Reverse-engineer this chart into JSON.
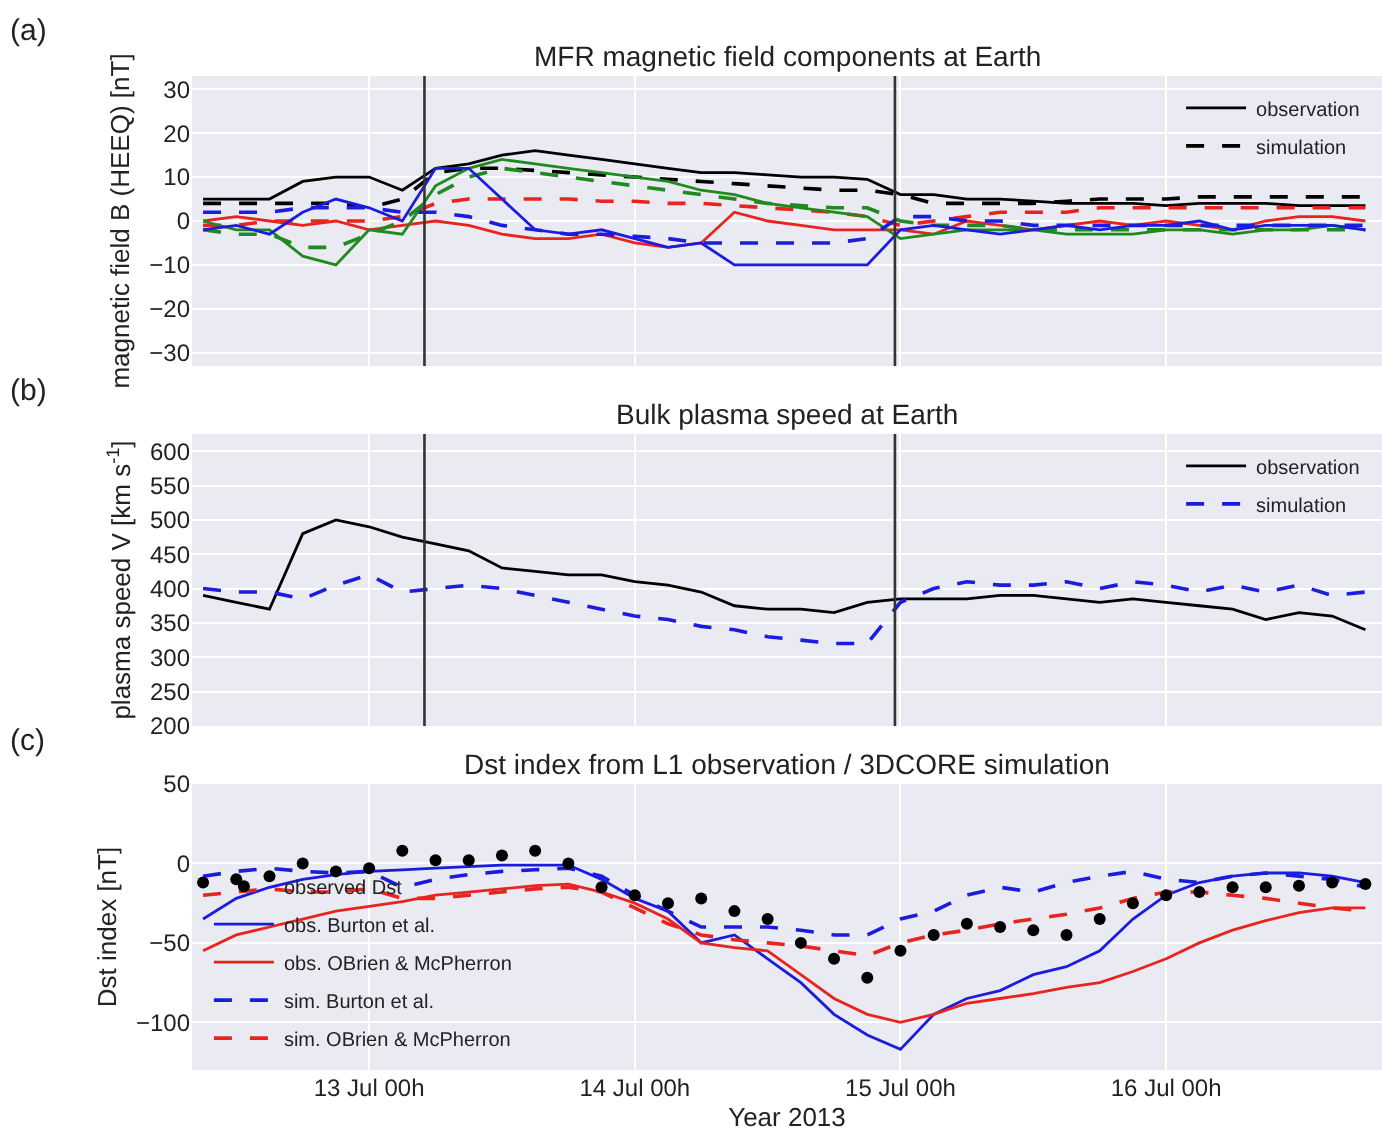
{
  "chart_data": [
    {
      "type": "line",
      "title": "MFR magnetic field components at Earth",
      "ylabel": "magnetic field B (HEEQ) [nT]",
      "annotations": [
        "(a)"
      ],
      "x": [
        "2013-07-12T09:00",
        "2013-07-12T12:00",
        "2013-07-12T15:00",
        "2013-07-12T18:00",
        "2013-07-12T21:00",
        "2013-07-13T00:00",
        "2013-07-13T03:00",
        "2013-07-13T06:00",
        "2013-07-13T09:00",
        "2013-07-13T12:00",
        "2013-07-13T15:00",
        "2013-07-13T18:00",
        "2013-07-13T21:00",
        "2013-07-14T00:00",
        "2013-07-14T03:00",
        "2013-07-14T06:00",
        "2013-07-14T09:00",
        "2013-07-14T12:00",
        "2013-07-14T15:00",
        "2013-07-14T18:00",
        "2013-07-14T21:00",
        "2013-07-15T00:00",
        "2013-07-15T03:00",
        "2013-07-15T06:00",
        "2013-07-15T09:00",
        "2013-07-15T12:00",
        "2013-07-15T15:00",
        "2013-07-15T18:00",
        "2013-07-15T21:00",
        "2013-07-16T00:00",
        "2013-07-16T03:00",
        "2013-07-16T06:00",
        "2013-07-16T09:00",
        "2013-07-16T12:00",
        "2013-07-16T15:00",
        "2013-07-16T18:00"
      ],
      "xlim": [
        "2013-07-12T08:00",
        "2013-07-16T19:30"
      ],
      "xticks": [
        {
          "value": "2013-07-13T00:00",
          "label": null
        },
        {
          "value": "2013-07-14T00:00",
          "label": null
        },
        {
          "value": "2013-07-15T00:00",
          "label": null
        },
        {
          "value": "2013-07-16T00:00",
          "label": null
        }
      ],
      "ylim": [
        -33,
        33
      ],
      "yticks": [
        {
          "value": -30,
          "label": "−30"
        },
        {
          "value": -20,
          "label": "−20"
        },
        {
          "value": -10,
          "label": "−10"
        },
        0,
        10,
        20,
        30
      ],
      "tick_labels": "y",
      "grid": true,
      "legend": "top right",
      "marker": "none",
      "ref_lines": [
        {
          "axis": "x",
          "value": "2013-07-13T05:00",
          "color": "#333333"
        },
        {
          "axis": "x",
          "value": "2013-07-14T23:30",
          "color": "#333333"
        }
      ],
      "series": [
        {
          "name": "observation",
          "color": "#000000",
          "line_style": "solid",
          "values": [
            5,
            5,
            5,
            9,
            10,
            10,
            7,
            12,
            13,
            15,
            16,
            15,
            14,
            13,
            12,
            11,
            11,
            10.5,
            10,
            10,
            9.5,
            6,
            6,
            5,
            5,
            4.5,
            4,
            4,
            4,
            3.5,
            4,
            4,
            4,
            3.5,
            3.5,
            3.5
          ]
        },
        {
          "name": "simulation",
          "color": "#000000",
          "line_style": "dashed",
          "values": [
            4,
            4,
            4,
            4,
            4,
            3,
            5,
            11,
            12,
            12,
            11.5,
            11,
            10.5,
            10,
            9.5,
            9,
            8.5,
            8,
            7.5,
            7,
            7,
            6,
            4,
            4,
            4,
            4,
            4.5,
            5,
            5,
            5,
            5.5,
            5.5,
            5.5,
            5.5,
            5.5,
            5.5
          ]
        },
        {
          "color": "#e8241f",
          "line_style": "solid",
          "values": [
            0,
            1,
            0,
            -1,
            0,
            -2,
            -1,
            0,
            -1,
            -3,
            -4,
            -4,
            -3,
            -5,
            -6,
            -5,
            2,
            0,
            -1,
            -2,
            -2,
            -2,
            -3,
            0,
            -1,
            -2,
            -1,
            0,
            -1,
            0,
            -1,
            -2,
            0,
            1,
            1,
            0
          ]
        },
        {
          "color": "#e8241f",
          "line_style": "dashed",
          "values": [
            -1,
            -1,
            0,
            0,
            0,
            0,
            1,
            4,
            5,
            5,
            5,
            5,
            4.5,
            4.5,
            4,
            4,
            3.5,
            3,
            2.5,
            2,
            1,
            -1,
            0,
            1,
            2,
            2,
            2,
            3,
            3,
            3,
            3,
            3,
            3,
            3,
            3,
            3
          ]
        },
        {
          "color": "#1f8a1f",
          "line_style": "solid",
          "values": [
            0,
            -2,
            -2,
            -8,
            -10,
            -2,
            -3,
            8,
            12,
            14,
            13,
            12,
            11,
            10,
            9,
            7,
            6,
            4,
            3,
            2,
            1,
            -4,
            -3,
            -2,
            -2,
            -2,
            -3,
            -3,
            -3,
            -2,
            -2,
            -3,
            -2,
            -2,
            -1,
            -2
          ]
        },
        {
          "color": "#1f8a1f",
          "line_style": "dashed",
          "values": [
            -2,
            -3,
            -3,
            -6,
            -6,
            -3,
            0,
            6,
            10,
            12,
            11,
            10,
            9,
            8,
            7,
            6,
            5,
            4,
            3.5,
            3,
            3,
            0,
            -1,
            -1,
            -1,
            -2,
            -2,
            -2,
            -2,
            -2,
            -2,
            -2,
            -2,
            -2,
            -2,
            -2
          ]
        },
        {
          "color": "#1c1cde",
          "line_style": "solid",
          "values": [
            -2,
            -1,
            -3,
            2,
            5,
            3,
            0,
            12,
            12,
            5,
            -2,
            -3,
            -2,
            -4,
            -6,
            -5,
            -10,
            -10,
            -10,
            -10,
            -10,
            -2,
            -1,
            -2,
            -3,
            -2,
            -1,
            -2,
            -1,
            -1,
            0,
            -2,
            -1,
            -1,
            -1,
            -2
          ]
        },
        {
          "color": "#1c1cde",
          "line_style": "dashed",
          "values": [
            2,
            2,
            2,
            3,
            3,
            3,
            2,
            2,
            1,
            -1,
            -2,
            -3,
            -3,
            -3.5,
            -4,
            -5,
            -5,
            -5,
            -5,
            -5,
            -4,
            1,
            1,
            0,
            0,
            -1,
            -1,
            -1,
            -1,
            -1,
            -1,
            -1,
            -1,
            -1,
            -1,
            -1
          ]
        }
      ]
    },
    {
      "type": "line",
      "title": "Bulk plasma speed at Earth",
      "ylabel": "plasma speed V [km s$^{-1}$]",
      "annotations": [
        "(b)"
      ],
      "x": [
        "2013-07-12T09:00",
        "2013-07-12T12:00",
        "2013-07-12T15:00",
        "2013-07-12T18:00",
        "2013-07-12T21:00",
        "2013-07-13T00:00",
        "2013-07-13T03:00",
        "2013-07-13T06:00",
        "2013-07-13T09:00",
        "2013-07-13T12:00",
        "2013-07-13T15:00",
        "2013-07-13T18:00",
        "2013-07-13T21:00",
        "2013-07-14T00:00",
        "2013-07-14T03:00",
        "2013-07-14T06:00",
        "2013-07-14T09:00",
        "2013-07-14T12:00",
        "2013-07-14T15:00",
        "2013-07-14T18:00",
        "2013-07-14T21:00",
        "2013-07-15T00:00",
        "2013-07-15T03:00",
        "2013-07-15T06:00",
        "2013-07-15T09:00",
        "2013-07-15T12:00",
        "2013-07-15T15:00",
        "2013-07-15T18:00",
        "2013-07-15T21:00",
        "2013-07-16T00:00",
        "2013-07-16T03:00",
        "2013-07-16T06:00",
        "2013-07-16T09:00",
        "2013-07-16T12:00",
        "2013-07-16T15:00",
        "2013-07-16T18:00"
      ],
      "xlim": [
        "2013-07-12T08:00",
        "2013-07-16T19:30"
      ],
      "xticks": [
        {
          "value": "2013-07-13T00:00",
          "label": null
        },
        {
          "value": "2013-07-14T00:00",
          "label": null
        },
        {
          "value": "2013-07-15T00:00",
          "label": null
        },
        {
          "value": "2013-07-16T00:00",
          "label": null
        }
      ],
      "ylim": [
        200,
        625
      ],
      "yticks": [
        200,
        250,
        300,
        350,
        400,
        450,
        500,
        550,
        600
      ],
      "tick_labels": "y",
      "grid": true,
      "legend": "top right",
      "marker": "none",
      "ref_lines": [
        {
          "axis": "x",
          "value": "2013-07-13T05:00",
          "color": "#333333"
        },
        {
          "axis": "x",
          "value": "2013-07-14T23:30",
          "color": "#333333"
        }
      ],
      "series": [
        {
          "name": "observation",
          "color": "#000000",
          "line_style": "solid",
          "values": [
            390,
            380,
            370,
            480,
            500,
            490,
            475,
            465,
            455,
            430,
            425,
            420,
            420,
            410,
            405,
            395,
            375,
            370,
            370,
            365,
            380,
            385,
            385,
            385,
            390,
            390,
            385,
            380,
            385,
            380,
            375,
            370,
            355,
            365,
            360,
            340
          ]
        },
        {
          "name": "simulation",
          "color": "#1c1cde",
          "line_style": "dashed",
          "values": [
            400,
            395,
            395,
            385,
            405,
            420,
            395,
            400,
            405,
            400,
            390,
            380,
            370,
            360,
            355,
            345,
            340,
            330,
            325,
            320,
            320,
            380,
            400,
            410,
            405,
            405,
            410,
            400,
            410,
            405,
            395,
            405,
            395,
            405,
            390,
            395
          ]
        }
      ]
    },
    {
      "type": "line",
      "title": "Dst index from L1 observation / 3DCORE simulation",
      "xlabel": "Year 2013",
      "ylabel": "Dst index [nT]",
      "annotations": [
        "(c)"
      ],
      "x": [
        "2013-07-12T09:00",
        "2013-07-12T12:00",
        "2013-07-12T15:00",
        "2013-07-12T18:00",
        "2013-07-12T21:00",
        "2013-07-13T00:00",
        "2013-07-13T03:00",
        "2013-07-13T06:00",
        "2013-07-13T09:00",
        "2013-07-13T12:00",
        "2013-07-13T15:00",
        "2013-07-13T18:00",
        "2013-07-13T21:00",
        "2013-07-14T00:00",
        "2013-07-14T03:00",
        "2013-07-14T06:00",
        "2013-07-14T09:00",
        "2013-07-14T12:00",
        "2013-07-14T15:00",
        "2013-07-14T18:00",
        "2013-07-14T21:00",
        "2013-07-15T00:00",
        "2013-07-15T03:00",
        "2013-07-15T06:00",
        "2013-07-15T09:00",
        "2013-07-15T12:00",
        "2013-07-15T15:00",
        "2013-07-15T18:00",
        "2013-07-15T21:00",
        "2013-07-16T00:00",
        "2013-07-16T03:00",
        "2013-07-16T06:00",
        "2013-07-16T09:00",
        "2013-07-16T12:00",
        "2013-07-16T15:00",
        "2013-07-16T18:00"
      ],
      "xlim": [
        "2013-07-12T08:00",
        "2013-07-16T19:30"
      ],
      "xticks": [
        {
          "value": "2013-07-13T00:00",
          "label": "13 Jul 00h"
        },
        {
          "value": "2013-07-14T00:00",
          "label": "14 Jul 00h"
        },
        {
          "value": "2013-07-15T00:00",
          "label": "15 Jul 00h"
        },
        {
          "value": "2013-07-16T00:00",
          "label": "16 Jul 00h"
        }
      ],
      "ylim": [
        -130,
        50
      ],
      "yticks": [
        {
          "value": -100,
          "label": "−100"
        },
        {
          "value": -50,
          "label": "−50"
        },
        0,
        50
      ],
      "grid": true,
      "legend": "bottom left",
      "series": [
        {
          "type": "scatter",
          "marker": "circle",
          "name": "observed Dst",
          "color": "#000000",
          "values": [
            -12,
            -10,
            -8,
            0,
            -5,
            -3,
            8,
            2,
            2,
            5,
            8,
            0,
            -15,
            -20,
            -25,
            -22,
            -30,
            -35,
            -50,
            -60,
            -72,
            -55,
            -45,
            -38,
            -40,
            -42,
            -45,
            -35,
            -25,
            -20,
            -18,
            -15,
            -15,
            -14,
            -12,
            -13
          ]
        },
        {
          "name": "obs. Burton et al.",
          "color": "#1c1cde",
          "line_style": "solid",
          "marker": "none",
          "values": [
            -35,
            -22,
            -15,
            -10,
            -7,
            -5,
            -4,
            -3,
            -2,
            -1,
            -1,
            -1,
            -10,
            -22,
            -30,
            -50,
            -45,
            -60,
            -75,
            -95,
            -108,
            -117,
            -95,
            -85,
            -80,
            -70,
            -65,
            -55,
            -35,
            -20,
            -12,
            -8,
            -6,
            -6,
            -8,
            -12
          ]
        },
        {
          "name": "obs. OBrien & McPherron",
          "color": "#e8241f",
          "line_style": "solid",
          "marker": "none",
          "values": [
            -55,
            -45,
            -40,
            -35,
            -30,
            -27,
            -24,
            -20,
            -18,
            -16,
            -14,
            -13,
            -18,
            -25,
            -35,
            -50,
            -53,
            -55,
            -70,
            -85,
            -95,
            -100,
            -95,
            -88,
            -85,
            -82,
            -78,
            -75,
            -68,
            -60,
            -50,
            -42,
            -36,
            -31,
            -28,
            -28
          ]
        },
        {
          "name": "sim. Burton et al.",
          "color": "#1c1cde",
          "line_style": "dashed",
          "marker": "none",
          "values": [
            -8,
            -5,
            -3,
            -5,
            -6,
            -5,
            -15,
            -10,
            -7,
            -5,
            -4,
            -3,
            -8,
            -20,
            -30,
            -40,
            -40,
            -40,
            -42,
            -45,
            -45,
            -35,
            -30,
            -20,
            -15,
            -18,
            -12,
            -8,
            -5,
            -10,
            -12,
            -8,
            -6,
            -8,
            -10,
            -15
          ]
        },
        {
          "name": "sim. OBrien & McPherron",
          "color": "#e8241f",
          "line_style": "dashed",
          "marker": "none",
          "values": [
            -20,
            -18,
            -16,
            -18,
            -18,
            -16,
            -22,
            -22,
            -20,
            -18,
            -16,
            -15,
            -18,
            -28,
            -38,
            -45,
            -48,
            -50,
            -52,
            -55,
            -58,
            -50,
            -45,
            -42,
            -38,
            -35,
            -32,
            -28,
            -22,
            -18,
            -18,
            -20,
            -22,
            -25,
            -28,
            -30
          ]
        }
      ]
    }
  ]
}
